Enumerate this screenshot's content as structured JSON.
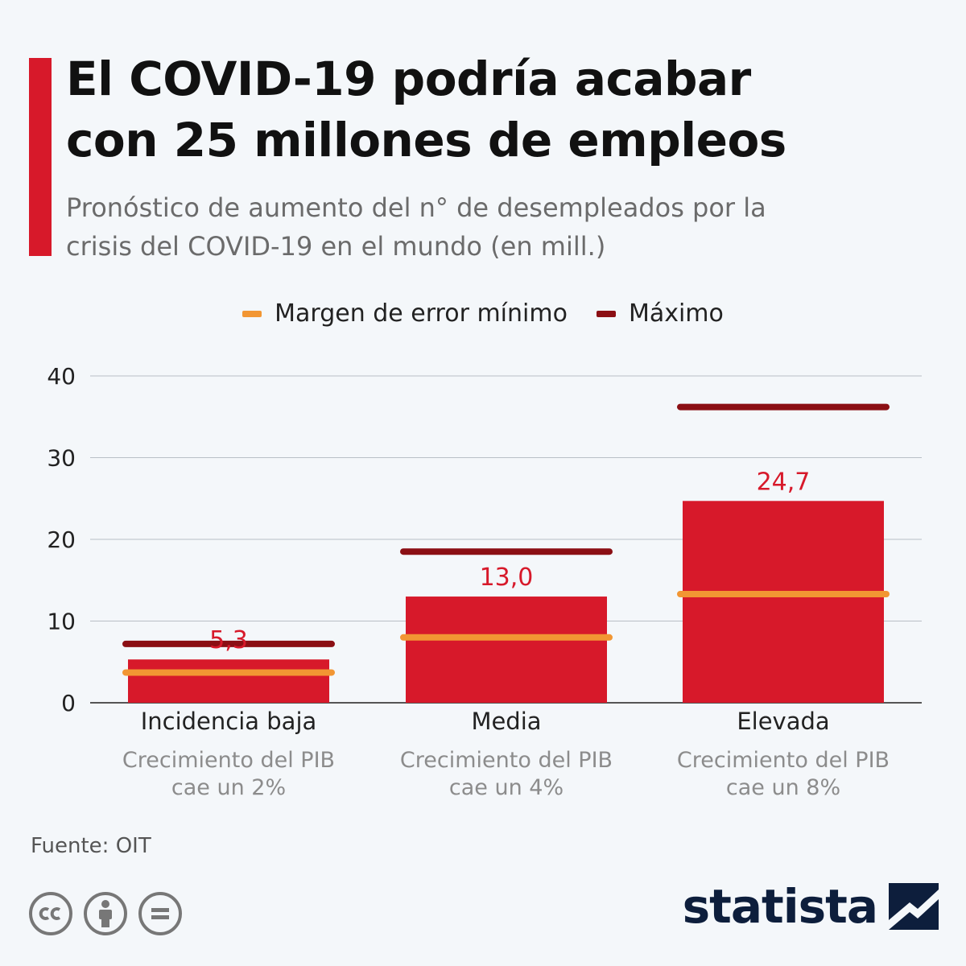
{
  "header": {
    "title_line1": "El COVID-19 podría acabar",
    "title_line2": "con 25 millones de empleos",
    "subtitle_line1": "Pronóstico de aumento del n° de desempleados por la",
    "subtitle_line2": "crisis del COVID-19 en el mundo (en mill.)"
  },
  "legend": {
    "min_label": "Margen de error mínimo",
    "max_label": "Máximo"
  },
  "colors": {
    "accent": "#d7192a",
    "bar": "#d7192a",
    "min_line": "#f29633",
    "max_line": "#8b0f14",
    "label_red": "#d7192a",
    "sublabel_gray": "#8c8c8c"
  },
  "chart_data": {
    "type": "bar",
    "categories": [
      "Incidencia baja",
      "Media",
      "Elevada"
    ],
    "category_sublabels": [
      [
        "Crecimiento del PIB",
        "cae un 2%"
      ],
      [
        "Crecimiento del PIB",
        "cae un 4%"
      ],
      [
        "Crecimiento del PIB",
        "cae un 8%"
      ]
    ],
    "values": [
      5.3,
      13.0,
      24.7
    ],
    "value_labels": [
      "5,3",
      "13,0",
      "24,7"
    ],
    "series": [
      {
        "name": "Margen de error mínimo",
        "values": [
          3.7,
          8.0,
          13.3
        ]
      },
      {
        "name": "Máximo",
        "values": [
          7.2,
          18.5,
          36.2
        ]
      }
    ],
    "ylim": [
      0,
      40
    ],
    "yticks": [
      0,
      10,
      20,
      30,
      40
    ],
    "grid": true,
    "legend_position": "top-center"
  },
  "footer": {
    "source": "Fuente: OIT",
    "brand": "statista",
    "license_icons": [
      "cc-icon",
      "attribution-icon",
      "no-derivatives-icon"
    ]
  }
}
